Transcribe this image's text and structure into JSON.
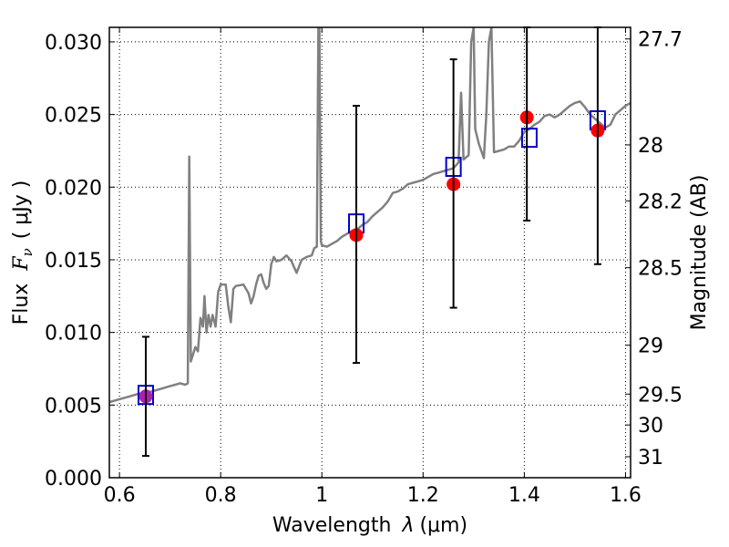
{
  "chart_data": {
    "type": "line",
    "xlabel": "Wavelength",
    "xlabel_symbol": "λ",
    "xlabel_unit": "(μm)",
    "ylabel": "Flux",
    "ylabel_symbol": "F",
    "ylabel_subscript": "ν",
    "ylabel_unit": "( μJy )",
    "y2label": "Magnitude (AB)",
    "xlim": [
      0.58,
      1.61
    ],
    "ylim": [
      0.0,
      0.031
    ],
    "grid": true,
    "x_ticks": [
      0.6,
      0.8,
      1.0,
      1.2,
      1.4,
      1.6
    ],
    "x_tick_labels": [
      "0.6",
      "0.8",
      "1",
      "1.2",
      "1.4",
      "1.6"
    ],
    "y_ticks": [
      0.0,
      0.005,
      0.01,
      0.015,
      0.02,
      0.025,
      0.03
    ],
    "y_tick_labels": [
      "0.000",
      "0.005",
      "0.010",
      "0.015",
      "0.020",
      "0.025",
      "0.030"
    ],
    "mag_ticks": [
      27.7,
      28,
      28.2,
      28.5,
      29,
      29.5,
      30,
      31
    ],
    "mag_tick_labels": [
      "27.7",
      "28",
      "28.2",
      "28.5",
      "29",
      "29.5",
      "30",
      "31"
    ],
    "spectrum": {
      "name": "model spectrum",
      "color": "#808080",
      "points": [
        [
          0.58,
          0.0052
        ],
        [
          0.6,
          0.0054
        ],
        [
          0.62,
          0.0056
        ],
        [
          0.64,
          0.0058
        ],
        [
          0.66,
          0.0059
        ],
        [
          0.68,
          0.0061
        ],
        [
          0.7,
          0.0063
        ],
        [
          0.72,
          0.0065
        ],
        [
          0.73,
          0.0064
        ],
        [
          0.735,
          0.0065
        ],
        [
          0.738,
          0.0221
        ],
        [
          0.741,
          0.008
        ],
        [
          0.75,
          0.009
        ],
        [
          0.755,
          0.0087
        ],
        [
          0.76,
          0.011
        ],
        [
          0.765,
          0.0104
        ],
        [
          0.768,
          0.0125
        ],
        [
          0.772,
          0.01
        ],
        [
          0.776,
          0.0112
        ],
        [
          0.78,
          0.0104
        ],
        [
          0.784,
          0.0112
        ],
        [
          0.79,
          0.0104
        ],
        [
          0.795,
          0.0128
        ],
        [
          0.8,
          0.0133
        ],
        [
          0.81,
          0.0133
        ],
        [
          0.815,
          0.0118
        ],
        [
          0.82,
          0.0107
        ],
        [
          0.825,
          0.013
        ],
        [
          0.83,
          0.0132
        ],
        [
          0.845,
          0.0133
        ],
        [
          0.855,
          0.0127
        ],
        [
          0.86,
          0.012
        ],
        [
          0.865,
          0.0125
        ],
        [
          0.87,
          0.0133
        ],
        [
          0.875,
          0.0139
        ],
        [
          0.88,
          0.014
        ],
        [
          0.885,
          0.0134
        ],
        [
          0.89,
          0.013
        ],
        [
          0.895,
          0.0132
        ],
        [
          0.9,
          0.0147
        ],
        [
          0.905,
          0.0152
        ],
        [
          0.91,
          0.0149
        ],
        [
          0.92,
          0.015
        ],
        [
          0.93,
          0.0153
        ],
        [
          0.94,
          0.0149
        ],
        [
          0.95,
          0.0141
        ],
        [
          0.96,
          0.015
        ],
        [
          0.97,
          0.0152
        ],
        [
          0.98,
          0.0153
        ],
        [
          0.985,
          0.0158
        ],
        [
          0.99,
          0.0159
        ],
        [
          0.993,
          0.031
        ],
        [
          0.995,
          0.031
        ],
        [
          0.998,
          0.0163
        ],
        [
          1.0,
          0.016
        ],
        [
          1.01,
          0.0159
        ],
        [
          1.02,
          0.0161
        ],
        [
          1.03,
          0.0163
        ],
        [
          1.04,
          0.0166
        ],
        [
          1.05,
          0.0168
        ],
        [
          1.06,
          0.017
        ],
        [
          1.07,
          0.0171
        ],
        [
          1.08,
          0.0174
        ],
        [
          1.09,
          0.0176
        ],
        [
          1.1,
          0.018
        ],
        [
          1.11,
          0.0183
        ],
        [
          1.12,
          0.0186
        ],
        [
          1.13,
          0.019
        ],
        [
          1.14,
          0.0196
        ],
        [
          1.15,
          0.0197
        ],
        [
          1.16,
          0.0199
        ],
        [
          1.17,
          0.0202
        ],
        [
          1.18,
          0.0203
        ],
        [
          1.19,
          0.0204
        ],
        [
          1.2,
          0.0205
        ],
        [
          1.21,
          0.0207
        ],
        [
          1.22,
          0.0209
        ],
        [
          1.23,
          0.021
        ],
        [
          1.24,
          0.0211
        ],
        [
          1.25,
          0.0212
        ],
        [
          1.26,
          0.0213
        ],
        [
          1.27,
          0.0217
        ],
        [
          1.275,
          0.0265
        ],
        [
          1.28,
          0.0219
        ],
        [
          1.29,
          0.0222
        ],
        [
          1.295,
          0.03
        ],
        [
          1.3,
          0.031
        ],
        [
          1.303,
          0.024
        ],
        [
          1.31,
          0.023
        ],
        [
          1.315,
          0.0225
        ],
        [
          1.32,
          0.022
        ],
        [
          1.325,
          0.025
        ],
        [
          1.33,
          0.03
        ],
        [
          1.335,
          0.031
        ],
        [
          1.34,
          0.0224
        ],
        [
          1.35,
          0.0225
        ],
        [
          1.36,
          0.0226
        ],
        [
          1.37,
          0.0228
        ],
        [
          1.38,
          0.0228
        ],
        [
          1.39,
          0.0232
        ],
        [
          1.4,
          0.0238
        ],
        [
          1.41,
          0.024
        ],
        [
          1.42,
          0.0243
        ],
        [
          1.43,
          0.0245
        ],
        [
          1.44,
          0.0249
        ],
        [
          1.45,
          0.025
        ],
        [
          1.46,
          0.0248
        ],
        [
          1.47,
          0.025
        ],
        [
          1.48,
          0.0253
        ],
        [
          1.49,
          0.0256
        ],
        [
          1.5,
          0.0258
        ],
        [
          1.51,
          0.0259
        ],
        [
          1.52,
          0.0255
        ],
        [
          1.53,
          0.025
        ],
        [
          1.54,
          0.0247
        ],
        [
          1.55,
          0.0244
        ],
        [
          1.56,
          0.0241
        ],
        [
          1.57,
          0.0243
        ],
        [
          1.58,
          0.025
        ],
        [
          1.59,
          0.0253
        ],
        [
          1.6,
          0.0256
        ],
        [
          1.61,
          0.0258
        ]
      ]
    },
    "observed": {
      "name": "observed photometry",
      "color": "#ff0000",
      "points": [
        {
          "x": 0.652,
          "y": 0.0056,
          "ylow": 0.0015,
          "yhigh": 0.0097
        },
        {
          "x": 1.068,
          "y": 0.0167,
          "ylow": 0.0079,
          "yhigh": 0.0256
        },
        {
          "x": 1.26,
          "y": 0.0202,
          "ylow": 0.0117,
          "yhigh": 0.0288
        },
        {
          "x": 1.405,
          "y": 0.0248,
          "ylow": 0.0177,
          "yhigh": 0.031
        },
        {
          "x": 1.545,
          "y": 0.0239,
          "ylow": 0.0147,
          "yhigh": 0.031
        }
      ]
    },
    "model_photometry": {
      "name": "model photometry",
      "color": "#0000cc",
      "points": [
        {
          "x": 0.652,
          "y": 0.0057
        },
        {
          "x": 1.068,
          "y": 0.0175
        },
        {
          "x": 1.26,
          "y": 0.0214
        },
        {
          "x": 1.41,
          "y": 0.0234
        },
        {
          "x": 1.545,
          "y": 0.0246
        }
      ]
    },
    "overlap_marker_color": "#aa22aa"
  }
}
